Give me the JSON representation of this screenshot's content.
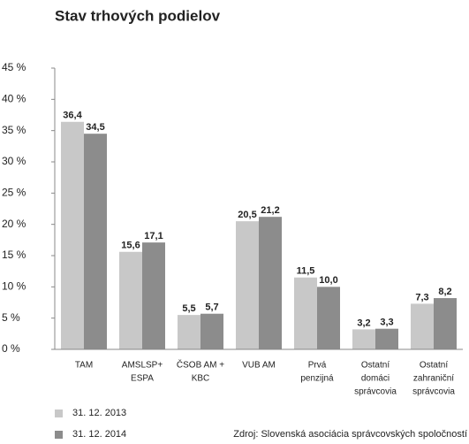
{
  "chart_data": {
    "type": "bar",
    "title": "Stav trhových podielov",
    "categories": [
      [
        "TAM"
      ],
      [
        "AMSLSP+",
        "ESPA"
      ],
      [
        "ČSOB AM +",
        "KBC"
      ],
      [
        "VUB AM"
      ],
      [
        "Prvá",
        "penzijná"
      ],
      [
        "Ostatní",
        "domáci",
        "správcovia"
      ],
      [
        "Ostatní",
        "zahraniční",
        "správcovia"
      ]
    ],
    "series": [
      {
        "name": "31. 12. 2013",
        "color": "#c8c8c8",
        "values": [
          36.4,
          15.6,
          5.5,
          20.5,
          11.5,
          3.2,
          7.3
        ],
        "value_labels": [
          "36,4",
          "15,6",
          "5,5",
          "20,5",
          "11,5",
          "3,2",
          "7,3"
        ]
      },
      {
        "name": "31. 12. 2014",
        "color": "#8c8c8c",
        "values": [
          34.5,
          17.1,
          5.7,
          21.2,
          10.0,
          3.3,
          8.2
        ],
        "value_labels": [
          "34,5",
          "17,1",
          "5,7",
          "21,2",
          "10,0",
          "3,3",
          "8,2"
        ]
      }
    ],
    "ylim": [
      0,
      45
    ],
    "yticks": [
      {
        "value": 0,
        "label": "0 %"
      },
      {
        "value": 5,
        "label": "5 %"
      },
      {
        "value": 10,
        "label": "10 %"
      },
      {
        "value": 15,
        "label": "15 %"
      },
      {
        "value": 20,
        "label": "20 %"
      },
      {
        "value": 25,
        "label": "25 %"
      },
      {
        "value": 30,
        "label": "30 %"
      },
      {
        "value": 35,
        "label": "35 %"
      },
      {
        "value": 40,
        "label": "40 %"
      },
      {
        "value": 45,
        "label": "45 %"
      }
    ],
    "grid": false,
    "source": "Zdroj: Slovenská asociácia správcovských spoločností"
  }
}
